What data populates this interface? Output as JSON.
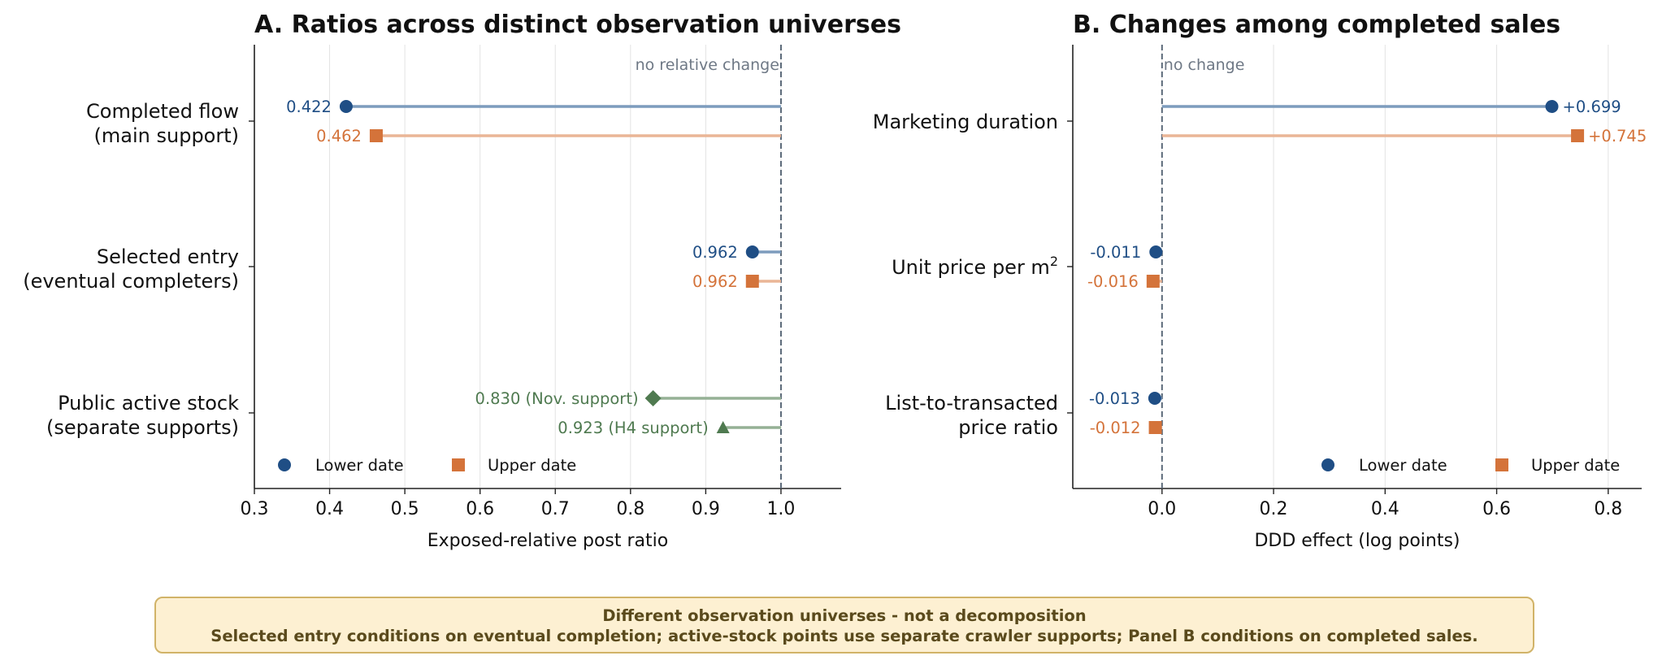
{
  "chart_data": [
    {
      "type": "dot",
      "title": "A. Ratios across distinct observation universes",
      "xlabel": "Exposed-relative post ratio",
      "xlim": [
        0.3,
        1.08
      ],
      "xticks": [
        "0.3",
        "0.4",
        "0.5",
        "0.6",
        "0.7",
        "0.8",
        "0.9",
        "1.0"
      ],
      "reference": {
        "value": 1.0,
        "label": "no relative change"
      },
      "legend": {
        "placement": "bottom-left",
        "entries": [
          "Lower date",
          "Upper date"
        ]
      },
      "grid": "vertical",
      "categories": [
        {
          "line1": "Completed flow",
          "line2": "(main support)"
        },
        {
          "line1": "Selected entry",
          "line2": "(eventual completers)"
        },
        {
          "line1": "Public active stock",
          "line2": "(separate supports)"
        }
      ],
      "points": [
        {
          "category": 0,
          "series": "Lower date",
          "marker": "circle",
          "value": 0.422,
          "label": "0.422"
        },
        {
          "category": 0,
          "series": "Upper date",
          "marker": "square",
          "value": 0.462,
          "label": "0.462"
        },
        {
          "category": 1,
          "series": "Lower date",
          "marker": "circle",
          "value": 0.962,
          "label": "0.962"
        },
        {
          "category": 1,
          "series": "Upper date",
          "marker": "square",
          "value": 0.962,
          "label": "0.962"
        },
        {
          "category": 2,
          "series": "Nov. support",
          "marker": "diamond",
          "value": 0.83,
          "label": "0.830  (Nov. support)"
        },
        {
          "category": 2,
          "series": "H4 support",
          "marker": "triangle",
          "value": 0.923,
          "label": "0.923  (H4 support)"
        }
      ]
    },
    {
      "type": "dot",
      "title": "B. Changes among completed sales",
      "xlabel": "DDD effect (log points)",
      "xlim": [
        -0.16,
        0.86
      ],
      "xticks": [
        "0.0",
        "0.2",
        "0.4",
        "0.6",
        "0.8"
      ],
      "reference": {
        "value": 0.0,
        "label": "no change"
      },
      "legend": {
        "placement": "bottom-right",
        "entries": [
          "Lower date",
          "Upper date"
        ]
      },
      "grid": "vertical",
      "categories": [
        {
          "line1": "Marketing duration",
          "line2": ""
        },
        {
          "line1": "Unit price per m",
          "sup": "2",
          "line2": ""
        },
        {
          "line1": "List-to-transacted",
          "line2": "price ratio"
        }
      ],
      "points": [
        {
          "category": 0,
          "series": "Lower date",
          "marker": "circle",
          "value": 0.699,
          "label": "+0.699"
        },
        {
          "category": 0,
          "series": "Upper date",
          "marker": "square",
          "value": 0.745,
          "label": "+0.745"
        },
        {
          "category": 1,
          "series": "Lower date",
          "marker": "circle",
          "value": -0.011,
          "label": "-0.011"
        },
        {
          "category": 1,
          "series": "Upper date",
          "marker": "square",
          "value": -0.016,
          "label": "-0.016"
        },
        {
          "category": 2,
          "series": "Lower date",
          "marker": "circle",
          "value": -0.013,
          "label": "-0.013"
        },
        {
          "category": 2,
          "series": "Upper date",
          "marker": "square",
          "value": -0.012,
          "label": "-0.012"
        }
      ]
    }
  ],
  "colors": {
    "lower": "#1f4e85",
    "lower_line": "#7d9cbd",
    "upper": "#d4733a",
    "upper_line": "#eab596",
    "green": "#4f7a50",
    "green_line": "#95b195",
    "ref_line": "#5a6878",
    "ref_text": "#6e7885",
    "grid": "#e3e3e3",
    "axis": "#222222"
  },
  "footnote": {
    "line1": "Different observation universes - not a decomposition",
    "line2": "Selected entry conditions on eventual completion; active-stock points use separate crawler supports; Panel B conditions on completed sales."
  }
}
